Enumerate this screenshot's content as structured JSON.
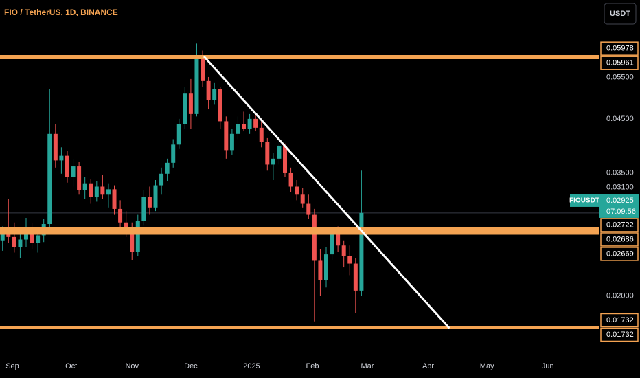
{
  "chart_data": {
    "type": "candlestick",
    "title": "FIO / TetherUS, 1D, BINANCE",
    "currency_button": "USDT",
    "symbol": "FIOUSDT",
    "last_price": 0.02925,
    "countdown": "07:09:56",
    "log_scale": true,
    "grid": false,
    "up_color": "#26a69a",
    "down_color": "#ef5350",
    "level_color": "#f4a352",
    "trend_color": "#ffffff",
    "ylim": [
      0.0152,
      0.0775
    ],
    "yticks": [
      {
        "value": 0.055,
        "label": "0.05500"
      },
      {
        "value": 0.045,
        "label": "0.04500"
      },
      {
        "value": 0.035,
        "label": "0.03500"
      },
      {
        "value": 0.031,
        "label": "0.03100"
      },
      {
        "value": 0.02,
        "label": "0.02000"
      }
    ],
    "xlim": [
      -6.3,
      299
    ],
    "xticks": [
      {
        "value": 0,
        "label": "Sep"
      },
      {
        "value": 30,
        "label": "Oct"
      },
      {
        "value": 61,
        "label": "Nov"
      },
      {
        "value": 91,
        "label": "Dec"
      },
      {
        "value": 122,
        "label": "2025"
      },
      {
        "value": 153,
        "label": "Feb"
      },
      {
        "value": 181,
        "label": "Mar"
      },
      {
        "value": 212,
        "label": "Apr"
      },
      {
        "value": 242,
        "label": "May"
      },
      {
        "value": 273,
        "label": "Jun"
      }
    ],
    "levels": [
      0.05978,
      0.05961,
      0.02722,
      0.02686,
      0.02669,
      0.01732,
      0.01732
    ],
    "trendline": {
      "x": [
        98,
        222.5
      ],
      "values": [
        0.0597,
        0.01732
      ]
    },
    "candles": [
      [
        -5,
        0.0258,
        0.0275,
        0.0246,
        0.0266
      ],
      [
        -2,
        0.0266,
        0.0312,
        0.0255,
        0.0262
      ],
      [
        1,
        0.0262,
        0.028,
        0.0244,
        0.025
      ],
      [
        4,
        0.025,
        0.0268,
        0.0238,
        0.0259
      ],
      [
        7,
        0.0259,
        0.0286,
        0.025,
        0.027
      ],
      [
        10,
        0.027,
        0.0279,
        0.0248,
        0.0255
      ],
      [
        13,
        0.0255,
        0.0273,
        0.0244,
        0.0264
      ],
      [
        16,
        0.0264,
        0.0285,
        0.0256,
        0.0278
      ],
      [
        19,
        0.0278,
        0.0515,
        0.0272,
        0.042
      ],
      [
        22,
        0.042,
        0.044,
        0.036,
        0.0372
      ],
      [
        25,
        0.0372,
        0.0395,
        0.035,
        0.038
      ],
      [
        28,
        0.038,
        0.0388,
        0.0336,
        0.0345
      ],
      [
        31,
        0.0345,
        0.0375,
        0.033,
        0.0362
      ],
      [
        34,
        0.0362,
        0.037,
        0.0318,
        0.0325
      ],
      [
        37,
        0.0325,
        0.0345,
        0.0312,
        0.0335
      ],
      [
        40,
        0.0335,
        0.0342,
        0.0305,
        0.0315
      ],
      [
        43,
        0.0315,
        0.0338,
        0.0308,
        0.033
      ],
      [
        46,
        0.033,
        0.0348,
        0.0312,
        0.0318
      ],
      [
        49,
        0.0318,
        0.0335,
        0.03,
        0.0326
      ],
      [
        52,
        0.0326,
        0.0332,
        0.029,
        0.0298
      ],
      [
        55,
        0.0298,
        0.031,
        0.0268,
        0.028
      ],
      [
        58,
        0.028,
        0.0295,
        0.0262,
        0.0272
      ],
      [
        61,
        0.0272,
        0.028,
        0.0236,
        0.0245
      ],
      [
        64,
        0.0245,
        0.029,
        0.024,
        0.0282
      ],
      [
        67,
        0.0282,
        0.0325,
        0.0276,
        0.0315
      ],
      [
        70,
        0.0315,
        0.033,
        0.029,
        0.03
      ],
      [
        73,
        0.03,
        0.034,
        0.0295,
        0.0332
      ],
      [
        76,
        0.0332,
        0.036,
        0.0318,
        0.035
      ],
      [
        79,
        0.035,
        0.0375,
        0.0338,
        0.0368
      ],
      [
        82,
        0.0368,
        0.041,
        0.036,
        0.04
      ],
      [
        85,
        0.04,
        0.045,
        0.0392,
        0.044
      ],
      [
        88,
        0.044,
        0.052,
        0.043,
        0.0505
      ],
      [
        91,
        0.0505,
        0.054,
        0.043,
        0.046
      ],
      [
        94,
        0.046,
        0.0635,
        0.0455,
        0.06
      ],
      [
        97,
        0.06,
        0.0615,
        0.052,
        0.0535
      ],
      [
        100,
        0.0535,
        0.0545,
        0.047,
        0.049
      ],
      [
        103,
        0.049,
        0.053,
        0.048,
        0.0515
      ],
      [
        106,
        0.0515,
        0.052,
        0.043,
        0.0445
      ],
      [
        109,
        0.0445,
        0.0455,
        0.0375,
        0.039
      ],
      [
        112,
        0.039,
        0.043,
        0.0382,
        0.042
      ],
      [
        115,
        0.042,
        0.0455,
        0.041,
        0.044
      ],
      [
        118,
        0.044,
        0.0465,
        0.0425,
        0.043
      ],
      [
        121,
        0.043,
        0.046,
        0.042,
        0.045
      ],
      [
        124,
        0.045,
        0.0462,
        0.0425,
        0.0432
      ],
      [
        127,
        0.0432,
        0.0445,
        0.0395,
        0.0405
      ],
      [
        130,
        0.0405,
        0.0412,
        0.0355,
        0.0365
      ],
      [
        133,
        0.0365,
        0.0385,
        0.034,
        0.0375
      ],
      [
        136,
        0.0375,
        0.0405,
        0.0365,
        0.0398
      ],
      [
        139,
        0.0398,
        0.0402,
        0.0345,
        0.0352
      ],
      [
        142,
        0.0352,
        0.036,
        0.0322,
        0.033
      ],
      [
        145,
        0.033,
        0.034,
        0.031,
        0.0318
      ],
      [
        148,
        0.0318,
        0.0328,
        0.03,
        0.0305
      ],
      [
        151,
        0.0305,
        0.0318,
        0.0285,
        0.029
      ],
      [
        154,
        0.029,
        0.0298,
        0.0178,
        0.0235
      ],
      [
        157,
        0.0235,
        0.0248,
        0.02,
        0.0215
      ],
      [
        160,
        0.0215,
        0.025,
        0.0208,
        0.0242
      ],
      [
        163,
        0.0242,
        0.0272,
        0.0236,
        0.0265
      ],
      [
        166,
        0.0265,
        0.0275,
        0.0245,
        0.0252
      ],
      [
        169,
        0.0252,
        0.0258,
        0.0228,
        0.024
      ],
      [
        172,
        0.024,
        0.0252,
        0.022,
        0.0232
      ],
      [
        175,
        0.0232,
        0.0238,
        0.0185,
        0.0205
      ],
      [
        178,
        0.0205,
        0.0355,
        0.02,
        0.02925
      ]
    ]
  }
}
